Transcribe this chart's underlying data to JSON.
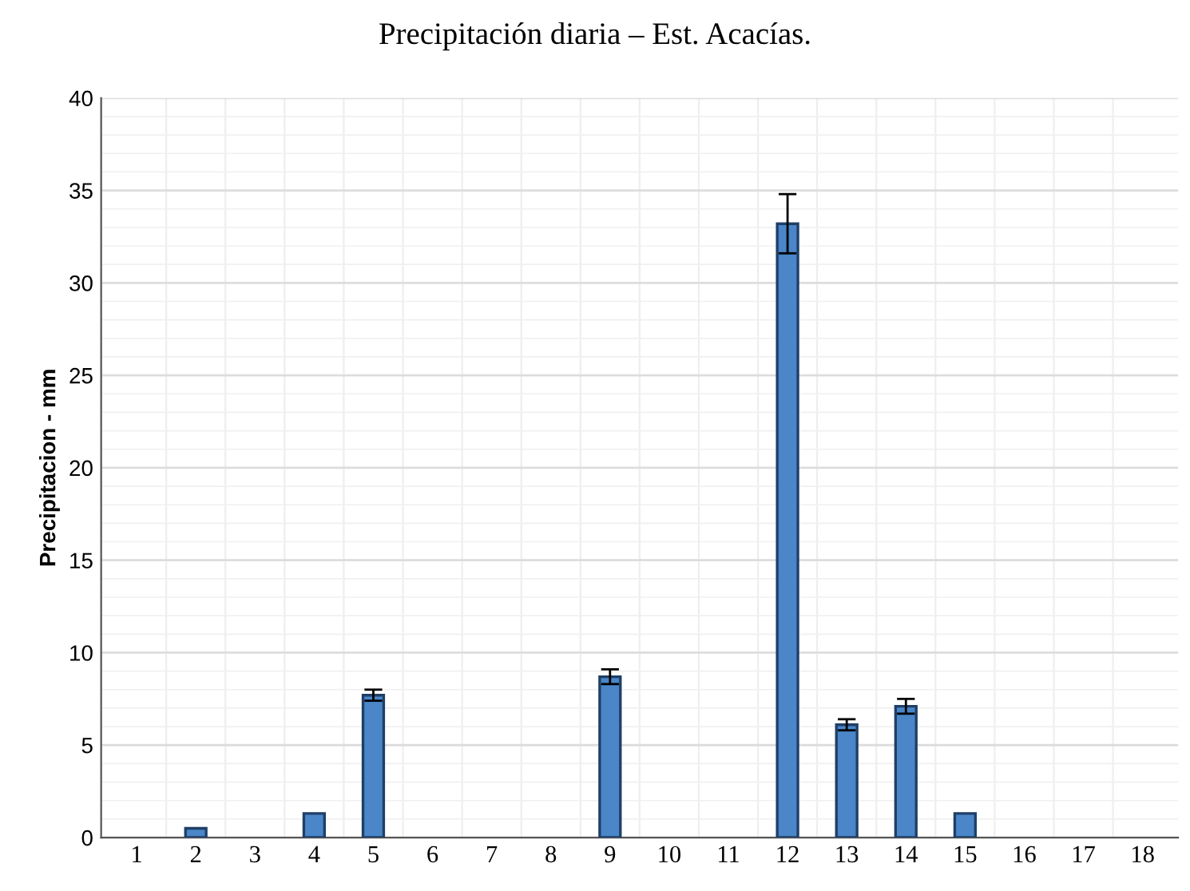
{
  "chart_data": {
    "type": "bar",
    "title": "Precipitación diaria – Est. Acacías.",
    "ylabel": "Precipitacion - mm",
    "categories": [
      "1",
      "2",
      "3",
      "4",
      "5",
      "6",
      "7",
      "8",
      "9",
      "10",
      "11",
      "12",
      "13",
      "14",
      "15",
      "16",
      "17",
      "18"
    ],
    "values": [
      0,
      0.5,
      0,
      1.3,
      7.7,
      0,
      0,
      0,
      8.7,
      0,
      0,
      33.2,
      6.1,
      7.1,
      1.3,
      0,
      0,
      0
    ],
    "errors": [
      null,
      null,
      null,
      null,
      0.3,
      null,
      null,
      null,
      0.4,
      null,
      null,
      1.6,
      0.3,
      0.4,
      null,
      null,
      null,
      null
    ],
    "color": "#4a86c8",
    "ylim": [
      0,
      40
    ],
    "yticks": [
      0,
      5,
      10,
      15,
      20,
      25,
      30,
      35,
      40
    ],
    "grid": true
  }
}
